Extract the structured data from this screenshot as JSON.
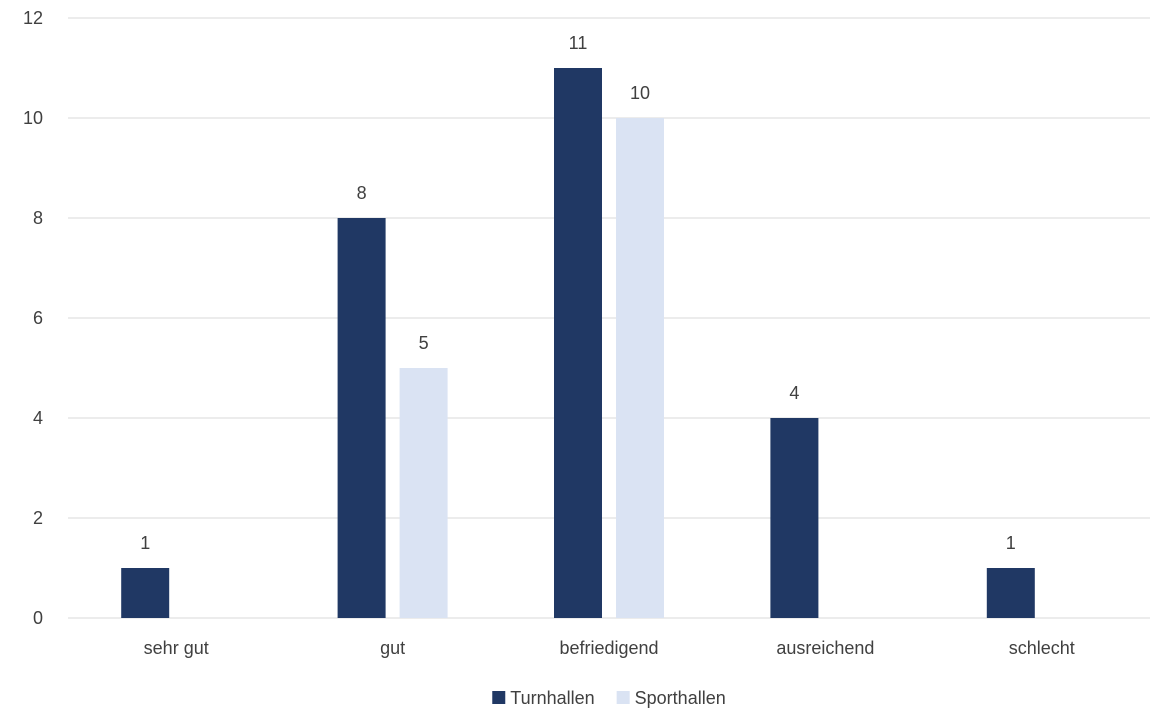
{
  "chart_data": {
    "type": "bar",
    "categories": [
      "sehr gut",
      "gut",
      "befriedigend",
      "ausreichend",
      "schlecht"
    ],
    "series": [
      {
        "name": "Turnhallen",
        "values": [
          1,
          8,
          11,
          4,
          1
        ],
        "color": "#203864"
      },
      {
        "name": "Sporthallen",
        "values": [
          0,
          5,
          10,
          0,
          0
        ],
        "color": "#DAE3F3"
      }
    ],
    "yticks": [
      0,
      2,
      4,
      6,
      8,
      10,
      12
    ],
    "ylim": [
      0,
      12
    ],
    "grid": true,
    "legend_position": "bottom",
    "gridline_color": "#D9D9D9",
    "label_color": "#404040"
  }
}
